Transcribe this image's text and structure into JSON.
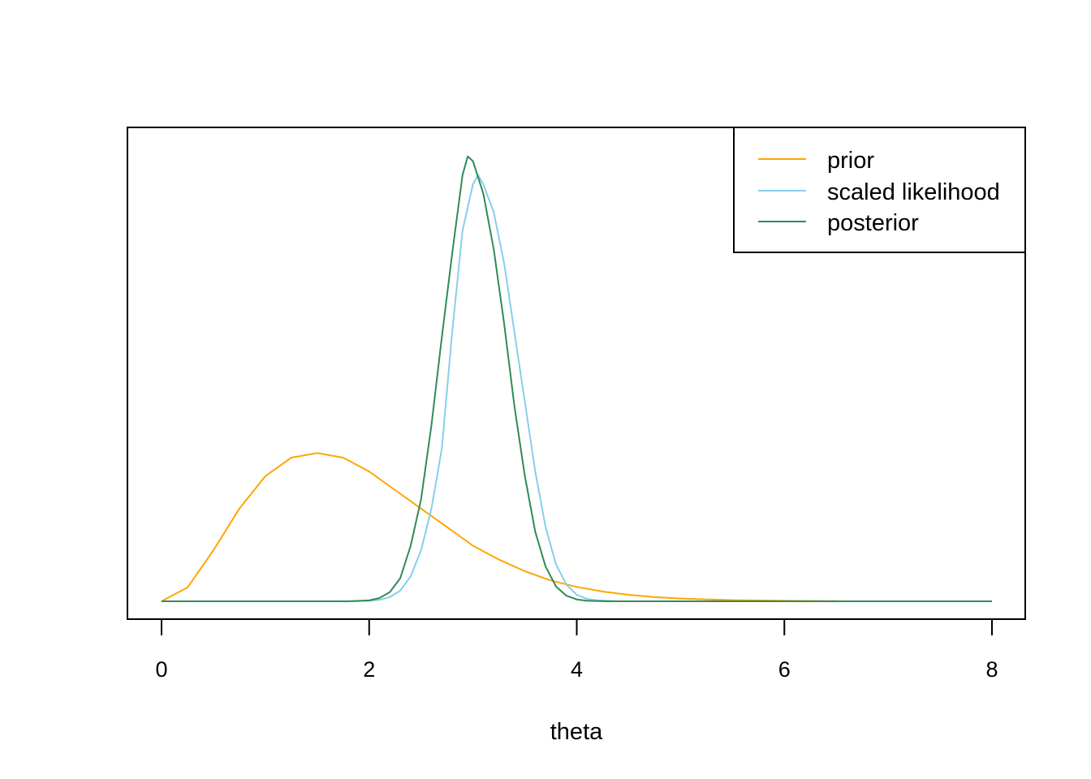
{
  "chart_data": {
    "type": "line",
    "title": "",
    "xlabel": "theta",
    "ylabel": "",
    "xlim": [
      0,
      8
    ],
    "x_ticks": [
      "0",
      "2",
      "4",
      "6",
      "8"
    ],
    "y_axis_visible": false,
    "grid": false,
    "legend_position": "top-right",
    "series": [
      {
        "name": "prior",
        "color": "#FFA500",
        "x": [
          0.0,
          0.25,
          0.5,
          0.75,
          1.0,
          1.25,
          1.5,
          1.75,
          2.0,
          2.25,
          2.5,
          2.75,
          3.0,
          3.25,
          3.5,
          3.75,
          4.0,
          4.25,
          4.5,
          4.75,
          5.0,
          5.5,
          6.0,
          6.5
        ],
        "y": [
          0.0,
          0.03,
          0.11,
          0.2,
          0.27,
          0.31,
          0.32,
          0.31,
          0.28,
          0.24,
          0.2,
          0.16,
          0.12,
          0.09,
          0.065,
          0.045,
          0.031,
          0.021,
          0.014,
          0.009,
          0.006,
          0.0025,
          0.001,
          0.0004
        ]
      },
      {
        "name": "scaled likelihood",
        "color": "#87CEEB",
        "x": [
          0.0,
          1.8,
          2.0,
          2.1,
          2.2,
          2.3,
          2.4,
          2.5,
          2.6,
          2.7,
          2.8,
          2.9,
          3.0,
          3.05,
          3.1,
          3.2,
          3.3,
          3.4,
          3.5,
          3.6,
          3.7,
          3.8,
          3.9,
          4.0,
          4.1,
          4.2,
          4.4,
          8.0
        ],
        "y": [
          0.0,
          0.0,
          0.001,
          0.003,
          0.009,
          0.023,
          0.054,
          0.11,
          0.2,
          0.33,
          0.58,
          0.8,
          0.9,
          0.92,
          0.9,
          0.84,
          0.73,
          0.58,
          0.43,
          0.28,
          0.16,
          0.08,
          0.036,
          0.014,
          0.005,
          0.002,
          0.0,
          0.0
        ]
      },
      {
        "name": "posterior",
        "color": "#2E8B57",
        "x": [
          0.0,
          1.8,
          2.0,
          2.1,
          2.2,
          2.3,
          2.4,
          2.5,
          2.6,
          2.7,
          2.8,
          2.9,
          2.95,
          3.0,
          3.1,
          3.2,
          3.3,
          3.4,
          3.5,
          3.6,
          3.7,
          3.8,
          3.9,
          4.0,
          4.1,
          4.3,
          8.0
        ],
        "y": [
          0.0,
          0.0,
          0.002,
          0.007,
          0.02,
          0.05,
          0.12,
          0.22,
          0.38,
          0.57,
          0.75,
          0.92,
          0.96,
          0.95,
          0.88,
          0.76,
          0.6,
          0.42,
          0.27,
          0.15,
          0.075,
          0.032,
          0.012,
          0.004,
          0.001,
          0.0,
          0.0
        ]
      }
    ]
  }
}
